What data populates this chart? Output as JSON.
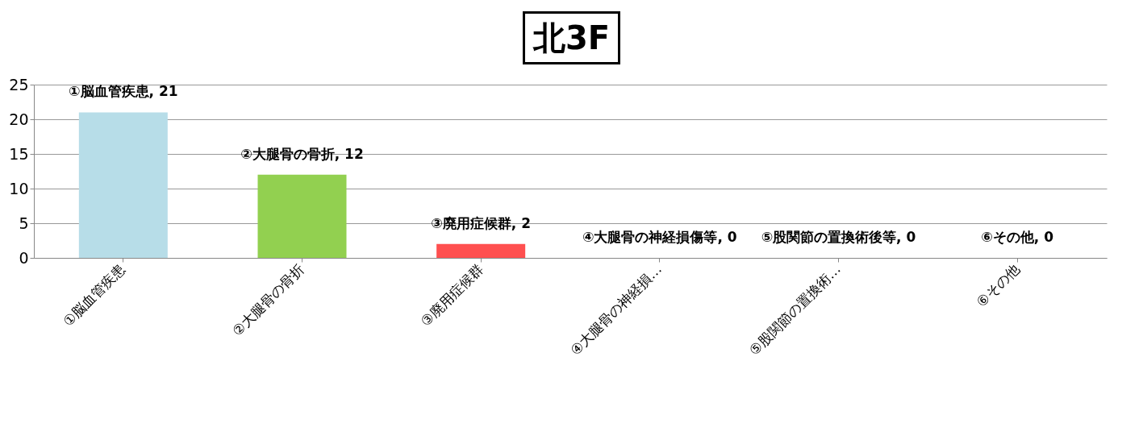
{
  "chart_data": {
    "type": "bar",
    "title": "北3F",
    "categories": [
      "①脳血管疾患",
      "②大腿骨の骨折",
      "③廃用症候群",
      "④大腿骨の神経損…",
      "⑤股関節の置換術…",
      "⑥その他"
    ],
    "values": [
      21,
      12,
      2,
      0,
      0,
      0
    ],
    "colors": [
      "#b7dde8",
      "#92d050",
      "#ff5050",
      "#4f81bd",
      "#4f81bd",
      "#4f81bd"
    ],
    "ylim": [
      0,
      25
    ],
    "yticks": [
      0,
      5,
      10,
      15,
      20,
      25
    ],
    "grid": "y",
    "annotations": [
      {
        "text": "①脳血管疾患, 21",
        "x": "①脳血管疾患",
        "y": 21
      },
      {
        "text": "②大腿骨の骨折, 12",
        "x": "②大腿骨の骨折",
        "y": 12
      },
      {
        "text": "③廃用症候群, 2",
        "x": "③廃用症候群",
        "y": 2
      },
      {
        "text": "④大腿骨の神経損傷等, 0",
        "x": "④大腿骨の神経損…",
        "y": 0
      },
      {
        "text": "⑤股関節の置換術後等, 0",
        "x": "⑤股関節の置換術…",
        "y": 0
      },
      {
        "text": "⑥その他, 0",
        "x": "⑥その他",
        "y": 0
      }
    ]
  }
}
